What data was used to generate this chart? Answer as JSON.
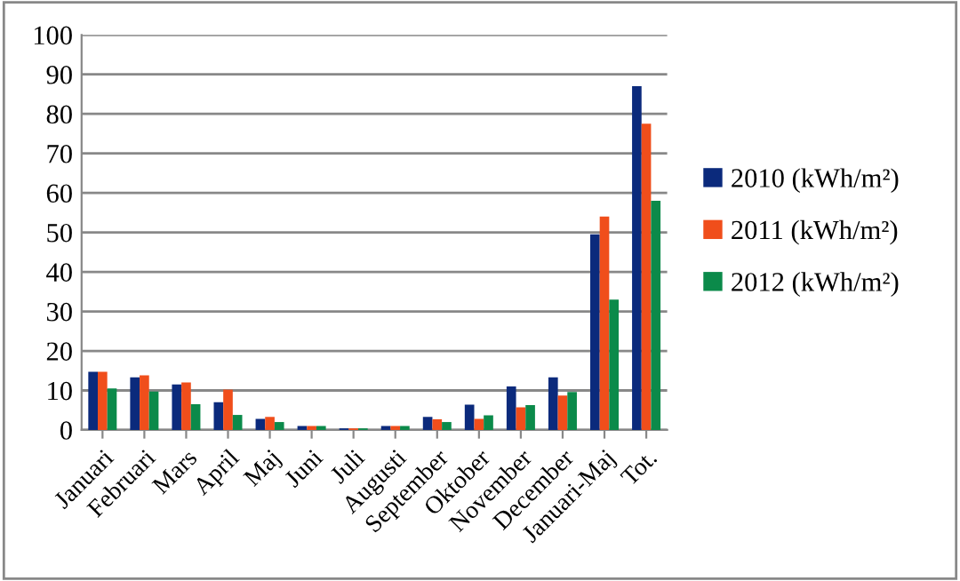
{
  "chart_data": {
    "type": "bar",
    "categories": [
      "Januari",
      "Februari",
      "Mars",
      "April",
      "Maj",
      "Juni",
      "Juli",
      "Augusti",
      "September",
      "Oktober",
      "November",
      "December",
      "Januari-Maj",
      "Tot."
    ],
    "series": [
      {
        "name": "2010 (kWh/m²)",
        "color": "#0b2a7c",
        "values": [
          14.7,
          13.3,
          11.5,
          7,
          2.8,
          1,
          0.4,
          1,
          3.3,
          6.4,
          11,
          13.3,
          49.5,
          87
        ]
      },
      {
        "name": "2011 (kWh/m²)",
        "color": "#f04e1b",
        "values": [
          14.7,
          13.8,
          12,
          10.2,
          3.3,
          1,
          0.4,
          1,
          2.7,
          2.8,
          5.7,
          8.7,
          54,
          77.5
        ]
      },
      {
        "name": "2012 (kWh/m²)",
        "color": "#0b8a4a",
        "values": [
          10.5,
          9.7,
          6.5,
          3.8,
          2,
          1,
          0.4,
          1,
          2,
          3.7,
          6.3,
          9.6,
          33,
          58
        ]
      }
    ],
    "ylim": [
      0,
      100
    ],
    "yticks": [
      0,
      10,
      20,
      30,
      40,
      50,
      60,
      70,
      80,
      90,
      100
    ],
    "grid": "y",
    "legend": "right"
  }
}
